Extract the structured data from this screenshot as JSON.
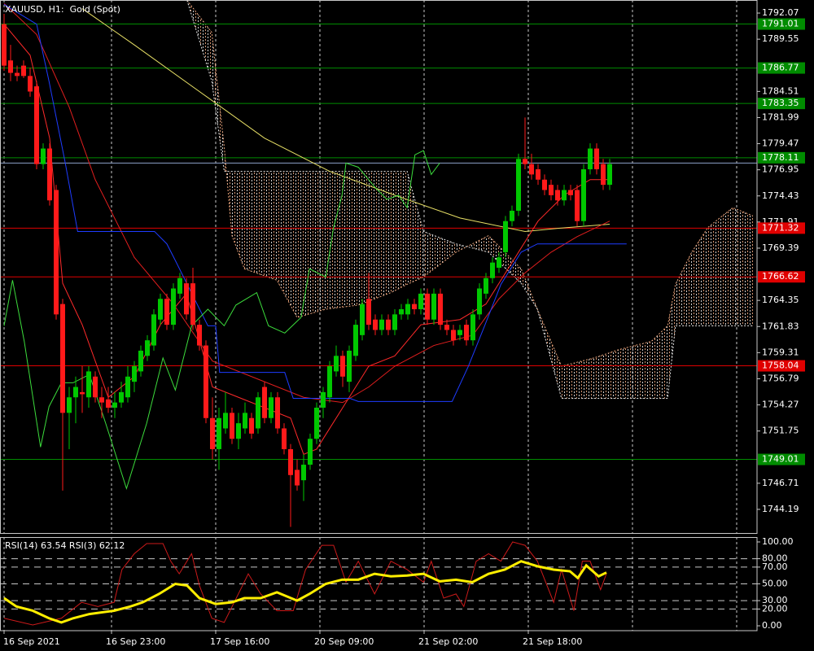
{
  "chart_data": {
    "type": "candlestick",
    "title": "XAUUSD, H1:  Gold (Spot)",
    "xlim": [
      -0.625,
      115.625
    ],
    "ylim": [
      1741.91,
      1793.33
    ],
    "grid": true,
    "up_color": "#00c800",
    "down_color": "#ff1a1a",
    "yticks": [
      1792.07,
      1789.55,
      1784.51,
      1781.99,
      1779.47,
      1776.95,
      1774.43,
      1771.91,
      1769.39,
      1764.35,
      1761.83,
      1759.31,
      1756.79,
      1754.27,
      1751.75,
      1746.71,
      1744.19
    ],
    "xticks": [
      {
        "value": 0,
        "label": "16 Sep 2021"
      },
      {
        "value": 16.5,
        "label": "16 Sep 23:00"
      },
      {
        "value": 32.5,
        "label": "17 Sep 16:00"
      },
      {
        "value": 48.5,
        "label": "20 Sep 09:00"
      },
      {
        "value": 64.5,
        "label": "21 Sep 02:00"
      },
      {
        "value": 80.5,
        "label": "21 Sep 18:00"
      },
      {
        "value": 96.5,
        "label": null
      },
      {
        "value": 112.5,
        "label": null
      }
    ],
    "candles": [
      [
        1791.0,
        1792.0,
        1786.5,
        1787.0
      ],
      [
        1787.5,
        1789.0,
        1785.5,
        1786.3
      ],
      [
        1786.3,
        1787.0,
        1785.5,
        1786.0
      ],
      [
        1787.0,
        1787.5,
        1785.8,
        1786.0
      ],
      [
        1786.0,
        1786.8,
        1784.0,
        1784.5
      ],
      [
        1785.0,
        1785.5,
        1777.0,
        1777.5
      ],
      [
        1777.5,
        1779.5,
        1777.0,
        1779.0
      ],
      [
        1779.0,
        1779.5,
        1773.5,
        1774.0
      ],
      [
        1775.0,
        1775.5,
        1762.5,
        1763.0
      ],
      [
        1764.0,
        1764.5,
        1746.0,
        1753.5
      ],
      [
        1753.5,
        1756.0,
        1750.0,
        1755.0
      ],
      [
        1755.0,
        1757.0,
        1752.5,
        1756.0
      ],
      [
        1755.5,
        1758.0,
        1753.5,
        1755.3
      ],
      [
        1755.0,
        1758.0,
        1754.0,
        1757.5
      ],
      [
        1757.0,
        1757.5,
        1754.5,
        1755.0
      ],
      [
        1755.0,
        1756.0,
        1753.0,
        1754.5
      ],
      [
        1754.8,
        1756.0,
        1753.5,
        1754.0
      ],
      [
        1754.0,
        1755.5,
        1753.0,
        1754.5
      ],
      [
        1754.5,
        1756.5,
        1754.0,
        1755.5
      ],
      [
        1755.0,
        1758.0,
        1754.5,
        1757.0
      ],
      [
        1756.5,
        1758.5,
        1755.5,
        1758.0
      ],
      [
        1757.5,
        1760.0,
        1757.0,
        1759.5
      ],
      [
        1759.0,
        1761.0,
        1758.5,
        1760.5
      ],
      [
        1760.0,
        1763.5,
        1759.5,
        1763.0
      ],
      [
        1762.5,
        1765.0,
        1762.0,
        1764.5
      ],
      [
        1764.5,
        1765.0,
        1761.5,
        1762.0
      ],
      [
        1762.0,
        1766.0,
        1761.5,
        1765.5
      ],
      [
        1765.0,
        1767.0,
        1764.5,
        1766.5
      ],
      [
        1766.0,
        1766.5,
        1762.5,
        1763.0
      ],
      [
        1766.0,
        1767.5,
        1761.5,
        1762.0
      ],
      [
        1762.0,
        1762.5,
        1759.5,
        1760.0
      ],
      [
        1760.0,
        1760.5,
        1752.5,
        1753.0
      ],
      [
        1753.0,
        1755.0,
        1749.0,
        1750.0
      ],
      [
        1750.0,
        1754.0,
        1748.0,
        1753.0
      ],
      [
        1752.0,
        1755.5,
        1751.5,
        1753.5
      ],
      [
        1753.5,
        1754.0,
        1750.5,
        1751.0
      ],
      [
        1751.0,
        1753.5,
        1750.0,
        1752.5
      ],
      [
        1752.0,
        1754.5,
        1751.5,
        1753.5
      ],
      [
        1753.0,
        1753.5,
        1751.0,
        1751.5
      ],
      [
        1752.0,
        1755.5,
        1751.5,
        1755.0
      ],
      [
        1756.0,
        1756.5,
        1752.5,
        1753.0
      ],
      [
        1753.0,
        1755.5,
        1752.5,
        1755.0
      ],
      [
        1755.0,
        1755.5,
        1751.5,
        1752.0
      ],
      [
        1752.0,
        1752.5,
        1749.5,
        1750.0
      ],
      [
        1750.0,
        1750.5,
        1742.5,
        1747.5
      ],
      [
        1748.0,
        1749.0,
        1746.0,
        1746.5
      ],
      [
        1747.0,
        1749.5,
        1745.0,
        1748.5
      ],
      [
        1748.5,
        1751.5,
        1748.0,
        1751.0
      ],
      [
        1751.0,
        1754.5,
        1750.5,
        1754.0
      ],
      [
        1754.0,
        1756.0,
        1753.0,
        1755.5
      ],
      [
        1755.0,
        1758.5,
        1754.5,
        1758.0
      ],
      [
        1757.5,
        1760.0,
        1757.0,
        1759.0
      ],
      [
        1759.0,
        1759.5,
        1756.0,
        1757.0
      ],
      [
        1756.5,
        1760.0,
        1755.5,
        1759.5
      ],
      [
        1759.0,
        1762.5,
        1758.5,
        1762.0
      ],
      [
        1761.0,
        1764.5,
        1760.5,
        1764.0
      ],
      [
        1764.5,
        1767.0,
        1761.5,
        1762.0
      ],
      [
        1762.5,
        1763.0,
        1761.0,
        1761.5
      ],
      [
        1761.5,
        1763.0,
        1761.0,
        1762.5
      ],
      [
        1762.5,
        1763.0,
        1761.0,
        1761.5
      ],
      [
        1761.5,
        1763.5,
        1761.0,
        1763.0
      ],
      [
        1763.0,
        1764.0,
        1762.5,
        1763.5
      ],
      [
        1763.0,
        1764.5,
        1762.5,
        1764.0
      ],
      [
        1764.0,
        1764.5,
        1763.0,
        1763.5
      ],
      [
        1763.5,
        1765.5,
        1763.0,
        1765.0
      ],
      [
        1765.0,
        1765.5,
        1762.0,
        1762.5
      ],
      [
        1762.5,
        1765.5,
        1762.0,
        1765.0
      ],
      [
        1765.0,
        1765.5,
        1761.5,
        1762.0
      ],
      [
        1762.0,
        1762.5,
        1761.0,
        1761.5
      ],
      [
        1761.5,
        1762.0,
        1760.0,
        1760.5
      ],
      [
        1761.0,
        1762.0,
        1760.5,
        1761.5
      ],
      [
        1762.0,
        1762.5,
        1760.0,
        1760.5
      ],
      [
        1760.5,
        1763.5,
        1760.0,
        1763.0
      ],
      [
        1763.0,
        1766.0,
        1762.5,
        1765.5
      ],
      [
        1765.0,
        1767.0,
        1764.5,
        1766.5
      ],
      [
        1766.5,
        1768.5,
        1766.0,
        1768.0
      ],
      [
        1767.5,
        1769.0,
        1767.0,
        1768.5
      ],
      [
        1769.0,
        1772.5,
        1768.5,
        1772.0
      ],
      [
        1772.0,
        1773.5,
        1771.5,
        1773.0
      ],
      [
        1773.0,
        1778.5,
        1772.5,
        1778.0
      ],
      [
        1778.0,
        1782.0,
        1777.0,
        1777.5
      ],
      [
        1777.5,
        1778.5,
        1776.0,
        1776.5
      ],
      [
        1777.0,
        1777.5,
        1775.5,
        1776.0
      ],
      [
        1776.0,
        1776.5,
        1774.5,
        1775.0
      ],
      [
        1775.5,
        1776.0,
        1774.0,
        1774.5
      ],
      [
        1775.0,
        1775.5,
        1773.5,
        1774.0
      ],
      [
        1774.0,
        1775.5,
        1773.5,
        1775.0
      ],
      [
        1775.0,
        1775.5,
        1774.0,
        1774.5
      ],
      [
        1775.0,
        1775.5,
        1771.5,
        1772.0
      ],
      [
        1772.0,
        1777.5,
        1771.5,
        1777.0
      ],
      [
        1777.0,
        1779.5,
        1776.5,
        1779.0
      ],
      [
        1779.0,
        1779.5,
        1776.5,
        1777.0
      ],
      [
        1777.5,
        1778.0,
        1775.0,
        1775.5
      ],
      [
        1775.5,
        1778.0,
        1775.0,
        1777.5
      ]
    ],
    "cloud": {
      "x": [
        28.1,
        31.9,
        33.8,
        35,
        36.9,
        41.9,
        45,
        49.4,
        54.4,
        59.4,
        61.9,
        64.4,
        69.4,
        74.4,
        79.4,
        81.9,
        85.6,
        90.6,
        94.4,
        99.4,
        101.9,
        103.1,
        105.6,
        108.1,
        111.9,
        115
      ],
      "span_a": {
        "color": "#e8a27a",
        "values": [
          1793.3,
          1790.2,
          1779.2,
          1770.6,
          1767.4,
          1766.3,
          1762.7,
          1763.5,
          1763.9,
          1765.1,
          1765.9,
          1766.6,
          1769.0,
          1770.6,
          1767.4,
          1763.5,
          1758.0,
          1758.8,
          1759.6,
          1760.4,
          1761.9,
          1765.9,
          1769.0,
          1771.4,
          1773.3,
          1772.5
        ]
      },
      "span_b": {
        "color": "#e6e6e6",
        "values": [
          1793.3,
          1785.5,
          1776.8,
          1776.8,
          1776.8,
          1776.8,
          1776.8,
          1776.8,
          1776.8,
          1776.8,
          1776.8,
          1771.0,
          1769.8,
          1769.0,
          1766.0,
          1763.5,
          1754.9,
          1754.9,
          1754.9,
          1754.9,
          1754.9,
          1761.9,
          1761.9,
          1761.9,
          1761.9,
          1761.9
        ]
      }
    },
    "lines": [
      {
        "color": "#e8e066",
        "x": [
          12,
          20,
          30,
          40,
          50,
          60,
          70,
          80,
          85,
          93
        ],
        "values": [
          1792.5,
          1789,
          1784.5,
          1780,
          1776.8,
          1774.5,
          1772.3,
          1771.0,
          1771.3,
          1771.7
        ]
      },
      {
        "color": "#ff2a2a",
        "x": [
          0,
          4,
          7,
          9,
          12,
          16,
          20,
          24,
          28,
          32,
          36,
          40,
          44,
          46,
          48,
          52,
          56,
          60,
          64,
          70,
          74,
          78,
          82,
          86,
          90,
          93
        ],
        "values": [
          1791,
          1788,
          1780,
          1766,
          1762,
          1755,
          1757,
          1762,
          1765,
          1756,
          1755,
          1754,
          1753,
          1749.5,
          1750,
          1754,
          1758,
          1759,
          1762,
          1762.5,
          1764,
          1768,
          1772,
          1774.5,
          1776,
          1776
        ]
      },
      {
        "color": "#e01e1e",
        "x": [
          0,
          5,
          10,
          14,
          20,
          26,
          32,
          40,
          46,
          52,
          56,
          60,
          66,
          72,
          76,
          80,
          84,
          88,
          93
        ],
        "values": [
          1793,
          1790,
          1783,
          1776,
          1768.5,
          1764,
          1758.5,
          1756.5,
          1755,
          1754.5,
          1756,
          1758,
          1760,
          1761,
          1764.5,
          1767,
          1769,
          1770.5,
          1772
        ]
      },
      {
        "color": "#1e3cff",
        "x": [
          0,
          5,
          6.9,
          9.4,
          11.3,
          13.1,
          23.1,
          25,
          26.3,
          31.3,
          32.5,
          33.1,
          43.1,
          44.4,
          53.1,
          54.4,
          68.8,
          71.3,
          73.8,
          76.3,
          79.4,
          81.9,
          95.6
        ],
        "values": [
          1792.9,
          1791.0,
          1785.5,
          1777.6,
          1771.0,
          1771.0,
          1771.0,
          1769.8,
          1768.2,
          1761.9,
          1761.9,
          1757.4,
          1757.4,
          1754.9,
          1754.9,
          1754.6,
          1754.6,
          1758.0,
          1761.9,
          1765.9,
          1769.0,
          1769.8,
          1769.8
        ]
      },
      {
        "color": "#3cdc3c",
        "x": [
          0,
          1.3,
          3.1,
          5.6,
          6.9,
          8.8,
          10.6,
          13.1,
          15.6,
          18.8,
          21.9,
          24.4,
          26.3,
          28.8,
          31.3,
          33.8,
          35.6,
          38.8,
          40.6,
          43.1,
          45.6,
          46.9,
          49.4,
          50.6,
          51.9,
          52.5,
          54.4,
          56.9,
          58.8,
          60.6,
          61.9,
          63.1,
          64.4,
          65.6,
          66.9
        ],
        "values": [
          1761.9,
          1766.3,
          1760.4,
          1750.2,
          1754.1,
          1756.4,
          1756.4,
          1757.2,
          1752.5,
          1746.2,
          1752.5,
          1758.8,
          1755.7,
          1761.9,
          1763.5,
          1761.9,
          1763.9,
          1765.1,
          1761.9,
          1761.2,
          1762.7,
          1767.4,
          1766.6,
          1771.4,
          1774.5,
          1777.6,
          1777.2,
          1775.3,
          1774.1,
          1774.5,
          1773.3,
          1778.4,
          1778.8,
          1776.5,
          1777.6
        ]
      }
    ],
    "levels": [
      {
        "value": 1791.01,
        "color": "#008c00"
      },
      {
        "value": 1786.77,
        "color": "#008c00"
      },
      {
        "value": 1783.35,
        "color": "#008c00"
      },
      {
        "value": 1778.11,
        "color": "#008c00"
      },
      {
        "value": 1771.32,
        "color": "#e00000"
      },
      {
        "value": 1766.62,
        "color": "#e00000"
      },
      {
        "value": 1758.04,
        "color": "#e00000"
      },
      {
        "value": 1749.01,
        "color": "#008c00"
      }
    ],
    "bid_line": {
      "value": 1777.6,
      "color": "#8ca0c8"
    },
    "rsi": {
      "title": "RSI(14) 63.54 RSI(3) 62.12",
      "ylim": [
        -5.8,
        105.8
      ],
      "yticks": [
        {
          "value": 100,
          "label": "100.00"
        },
        {
          "value": 80,
          "label": "80.00"
        },
        {
          "value": 70,
          "label": "70.00"
        },
        {
          "value": 50,
          "label": "50.00"
        },
        {
          "value": 30,
          "label": "30.00"
        },
        {
          "value": 20,
          "label": "20.00"
        },
        {
          "value": 0,
          "label": "0.00"
        }
      ],
      "dashed_levels": [
        80,
        70,
        50,
        30,
        20
      ],
      "series": [
        {
          "color": "#cc1a1a",
          "width": 1,
          "x": [
            0,
            4.4,
            8.8,
            11.9,
            14.4,
            16.9,
            18.1,
            20,
            21.9,
            24.4,
            25.6,
            26.9,
            28.8,
            30,
            31.9,
            33.8,
            36.3,
            37.5,
            39.4,
            41.9,
            44.4,
            46.3,
            48.8,
            50.6,
            52.5,
            54.4,
            56.9,
            59.4,
            61.9,
            64.4,
            65.6,
            67.5,
            69.4,
            70.6,
            72.5,
            74.4,
            76.3,
            78.1,
            80,
            81.9,
            84.4,
            85.6,
            87.5,
            88.8,
            90,
            91.6,
            92.5
          ],
          "values": [
            9,
            1,
            9,
            28,
            23,
            28,
            67,
            86,
            98,
            98,
            77,
            62,
            86,
            48,
            9,
            4,
            43,
            62,
            38,
            18,
            18,
            67,
            96,
            96,
            52,
            77,
            38,
            77,
            67,
            52,
            77,
            33,
            38,
            23,
            77,
            86,
            77,
            100,
            96,
            77,
            28,
            67,
            18,
            77,
            77,
            43,
            62.12
          ]
        },
        {
          "color": "#ffee00",
          "width": 3,
          "x": [
            0,
            1.9,
            4.4,
            6.9,
            8.8,
            10.6,
            13.1,
            16.9,
            19.4,
            21.3,
            23.8,
            26.3,
            28.1,
            30,
            32.5,
            35,
            36.9,
            39.4,
            41.9,
            45,
            46.9,
            49.4,
            51.9,
            54.4,
            56.9,
            59.4,
            61.9,
            64.4,
            66.9,
            69.4,
            71.9,
            74.4,
            76.9,
            79.4,
            81.9,
            84.4,
            86.9,
            88.1,
            89.4,
            91.3,
            92.5
          ],
          "values": [
            33,
            23,
            18,
            9,
            4,
            9,
            14,
            18,
            23,
            28,
            38,
            50,
            48,
            33,
            26,
            28,
            33,
            33,
            40,
            30,
            38,
            50,
            55,
            55,
            62,
            59,
            60,
            62,
            53,
            55,
            52,
            62,
            67,
            77,
            71,
            67,
            65,
            57,
            72,
            59,
            63.54
          ]
        }
      ]
    }
  }
}
